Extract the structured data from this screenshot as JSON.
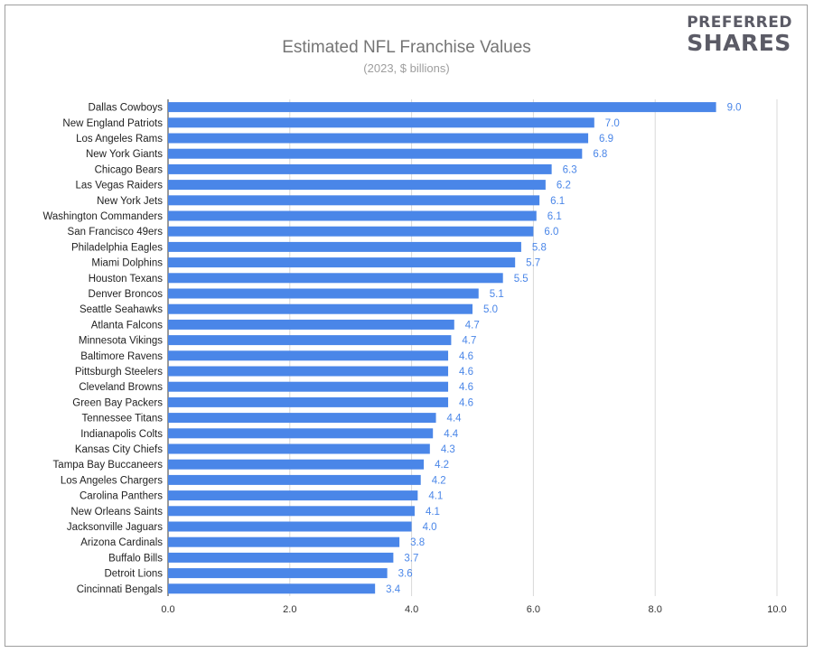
{
  "brand": {
    "line1": "PREFERRED",
    "line2": "SHARES"
  },
  "chart_data": {
    "type": "bar",
    "orientation": "horizontal",
    "title": "Estimated NFL Franchise Values",
    "subtitle": "(2023, $ billions)",
    "xlim": [
      0,
      10
    ],
    "x_ticks": [
      "0.0",
      "2.0",
      "4.0",
      "6.0",
      "8.0",
      "10.0"
    ],
    "grid": true,
    "bar_color": "#4a86e8",
    "label_color": "#4a86e8",
    "categories": [
      "Dallas Cowboys",
      "New England Patriots",
      "Los Angeles Rams",
      "New York Giants",
      "Chicago Bears",
      "Las Vegas Raiders",
      "New York Jets",
      "Washington Commanders",
      "San Francisco 49ers",
      "Philadelphia Eagles",
      "Miami Dolphins",
      "Houston Texans",
      "Denver Broncos",
      "Seattle Seahawks",
      "Atlanta Falcons",
      "Minnesota Vikings",
      "Baltimore Ravens",
      "Pittsburgh Steelers",
      "Cleveland Browns",
      "Green Bay Packers",
      "Tennessee Titans",
      "Indianapolis Colts",
      "Kansas City Chiefs",
      "Tampa Bay Buccaneers",
      "Los Angeles Chargers",
      "Carolina Panthers",
      "New Orleans Saints",
      "Jacksonville Jaguars",
      "Arizona Cardinals",
      "Buffalo Bills",
      "Detroit Lions",
      "Cincinnati Bengals"
    ],
    "values": [
      9.0,
      7.0,
      6.9,
      6.8,
      6.3,
      6.2,
      6.1,
      6.05,
      6.0,
      5.8,
      5.7,
      5.5,
      5.1,
      5.0,
      4.7,
      4.65,
      4.6,
      4.6,
      4.6,
      4.6,
      4.4,
      4.35,
      4.3,
      4.2,
      4.15,
      4.1,
      4.05,
      4.0,
      3.8,
      3.7,
      3.6,
      3.4
    ],
    "value_labels": [
      "9.0",
      "7.0",
      "6.9",
      "6.8",
      "6.3",
      "6.2",
      "6.1",
      "6.1",
      "6.0",
      "5.8",
      "5.7",
      "5.5",
      "5.1",
      "5.0",
      "4.7",
      "4.7",
      "4.6",
      "4.6",
      "4.6",
      "4.6",
      "4.4",
      "4.4",
      "4.3",
      "4.2",
      "4.2",
      "4.1",
      "4.1",
      "4.0",
      "3.8",
      "3.7",
      "3.6",
      "3.4"
    ]
  }
}
